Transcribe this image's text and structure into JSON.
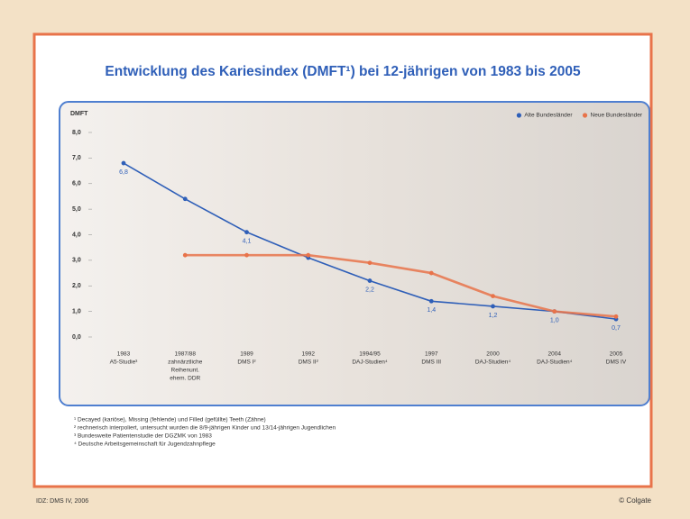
{
  "chart_data": {
    "type": "line",
    "title": "Entwicklung des Kariesindex (DMFT¹) bei 12-jährigen von 1983 bis 2005",
    "ylabel": "DMFT",
    "categories": [
      [
        "1983",
        "A5-Studie³"
      ],
      [
        "1987/88",
        "zahnärztliche",
        "Reihenunt.",
        "ehem. DDR"
      ],
      [
        "1989",
        "DMS I²"
      ],
      [
        "1992",
        "DMS II²"
      ],
      [
        "1994/95",
        "DAJ-Studien⁴"
      ],
      [
        "1997",
        "DMS III"
      ],
      [
        "2000",
        "DAJ-Studien⁴"
      ],
      [
        "2004",
        "DAJ-Studien⁴"
      ],
      [
        "2005",
        "DMS IV"
      ]
    ],
    "series": [
      {
        "name": "Alte Bundesländer",
        "color": "#2f5fb8",
        "values": [
          6.8,
          5.4,
          4.1,
          3.1,
          2.2,
          1.4,
          1.2,
          1.0,
          0.7
        ],
        "value_labels": [
          "6,8",
          null,
          "4,1",
          null,
          "2,2",
          "1,4",
          "1,2",
          "1,0",
          "0,7"
        ]
      },
      {
        "name": "Neue Bundesländer",
        "color": "#e8734a",
        "values": [
          null,
          3.2,
          3.2,
          3.2,
          2.9,
          2.5,
          1.6,
          1.0,
          0.8
        ]
      }
    ],
    "ylim": [
      0,
      8
    ],
    "yticks": [
      {
        "value": 0,
        "label": "0,0"
      },
      {
        "value": 1,
        "label": "1,0"
      },
      {
        "value": 2,
        "label": "2,0"
      },
      {
        "value": 3,
        "label": "3,0"
      },
      {
        "value": 4,
        "label": "4,0"
      },
      {
        "value": 5,
        "label": "5,0"
      },
      {
        "value": 6,
        "label": "6,0"
      },
      {
        "value": 7,
        "label": "7,0"
      },
      {
        "value": 8,
        "label": "8,0"
      }
    ],
    "grid": false,
    "legend": "top-right",
    "footnotes": [
      "¹ Decayed (kariöse), Missing (fehlende) und Filled (gefüllte) Teeth (Zähne)",
      "² rechnerisch interpoliert, untersucht wurden die 8/9-jährigen Kinder und 13/14-jährigen Jugendlichen",
      "³ Bundesweite Patientenstudie der DGZMK von 1983",
      "⁴ Deutsche Arbeitsgemeinschaft für Jugendzahnpflege"
    ],
    "source": "IDZ: DMS IV, 2006",
    "credit": "© Colgate"
  }
}
